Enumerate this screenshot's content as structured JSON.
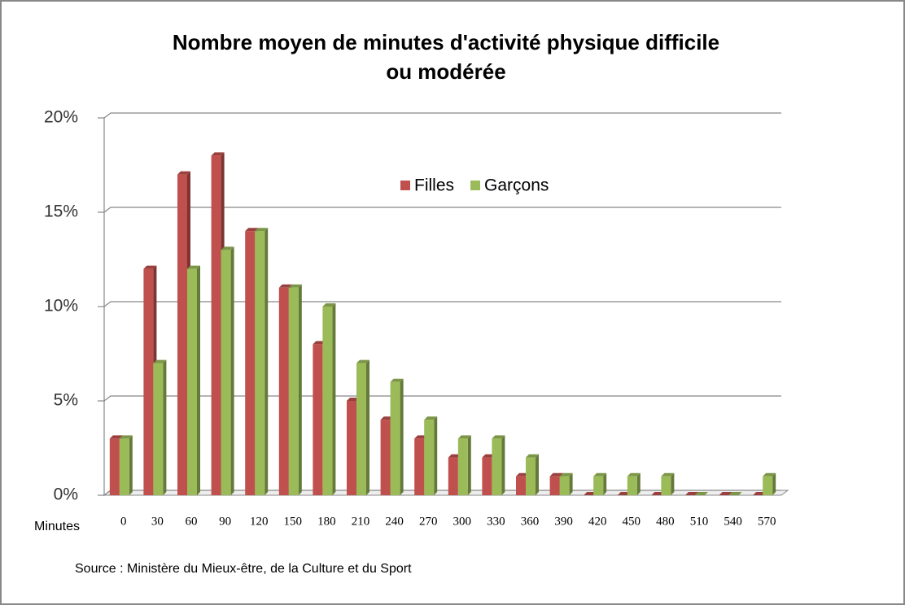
{
  "chart_data": {
    "type": "bar",
    "title": [
      "Nombre moyen de minutes d'activité physique difficile",
      "ou modérée"
    ],
    "x_label": "Minutes",
    "source": "Source : Ministère du Mieux-être, de la Culture et du Sport",
    "categories": [
      "0",
      "30",
      "60",
      "90",
      "120",
      "150",
      "180",
      "210",
      "240",
      "270",
      "300",
      "330",
      "360",
      "390",
      "420",
      "450",
      "480",
      "510",
      "540",
      "570"
    ],
    "series": [
      {
        "name": "Filles",
        "color": "#c0504d",
        "values": [
          3,
          12,
          17,
          18,
          14,
          11,
          8,
          5,
          4,
          3,
          2,
          2,
          1,
          1,
          0,
          0,
          0,
          0,
          0,
          0
        ]
      },
      {
        "name": "Garçons",
        "color": "#9bbb59",
        "values": [
          3,
          7,
          12,
          13,
          14,
          11,
          10,
          7,
          6,
          4,
          3,
          3,
          2,
          1,
          1,
          1,
          1,
          0,
          0,
          1
        ]
      }
    ],
    "ylim": [
      0,
      20
    ],
    "yticks": [
      {
        "value": 0,
        "label": "0%"
      },
      {
        "value": 5,
        "label": "5%"
      },
      {
        "value": 10,
        "label": "10%"
      },
      {
        "value": 15,
        "label": "15%"
      },
      {
        "value": 20,
        "label": "20%"
      }
    ],
    "grid": true,
    "legend": "top"
  }
}
